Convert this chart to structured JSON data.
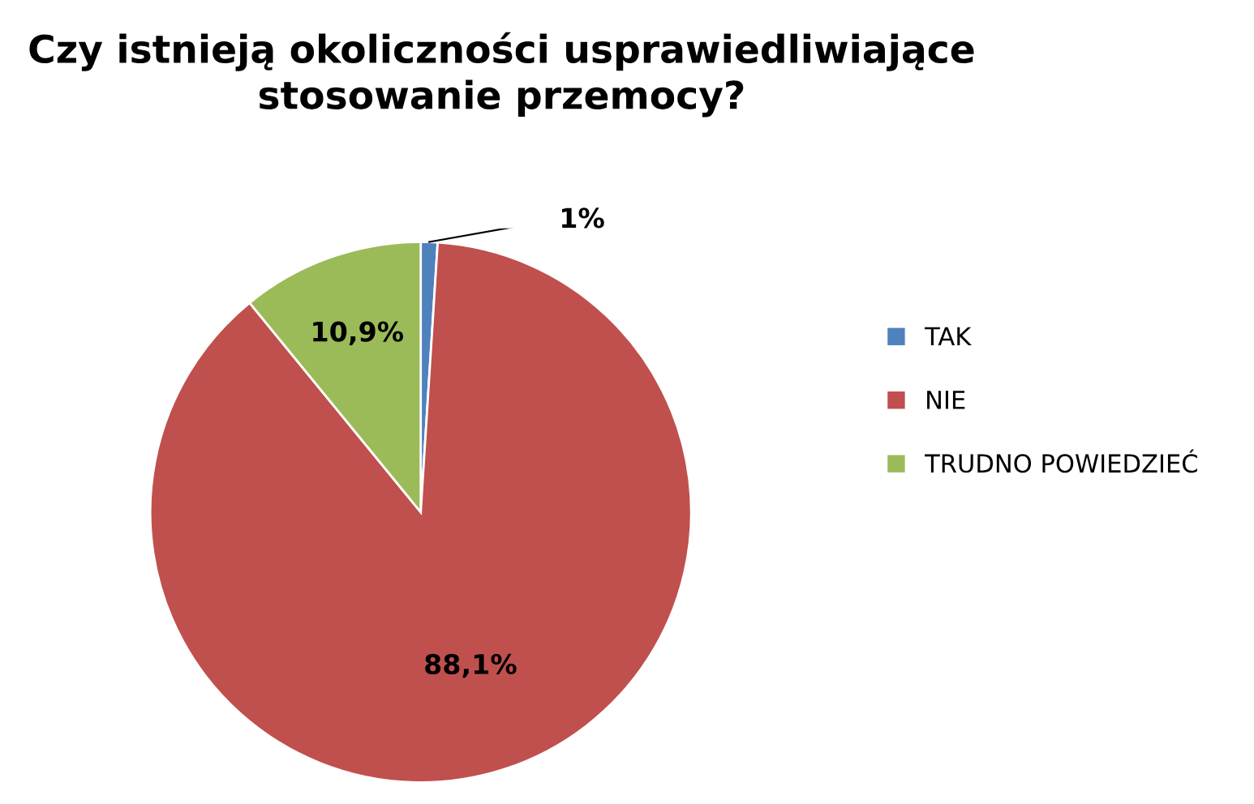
{
  "chart_data": {
    "type": "pie",
    "title": "Czy istnieją okoliczności usprawiedliwiające\nstosowanie przemocy?",
    "categories": [
      "TAK",
      "NIE",
      "TRUDNO POWIEDZIEĆ"
    ],
    "values": [
      1,
      88.1,
      10.9
    ],
    "colors": [
      "#4f81bd",
      "#c0504d",
      "#9bbb59"
    ],
    "value_labels": [
      "1%",
      "88,1%",
      "10,9%"
    ],
    "legend": "right"
  }
}
